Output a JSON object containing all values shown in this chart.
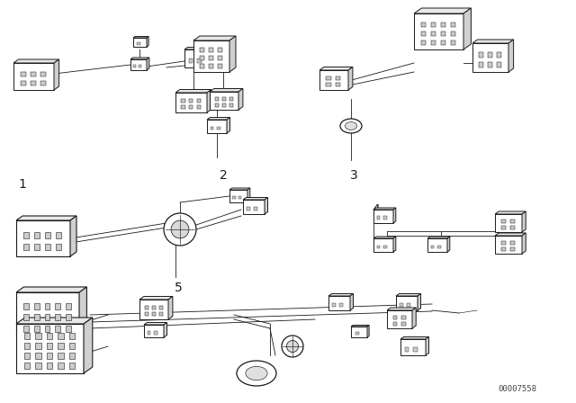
{
  "background_color": "#ffffff",
  "line_color": "#1a1a1a",
  "fig_width": 6.4,
  "fig_height": 4.48,
  "dpi": 100,
  "watermark": "00007558",
  "border_color": "#000000"
}
